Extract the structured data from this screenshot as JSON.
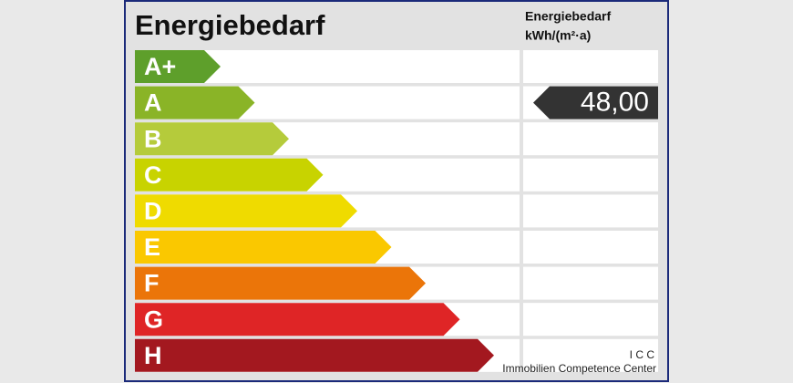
{
  "header": {
    "title": "Energiebedarf",
    "unit_lines": [
      "Energiebedarf",
      "kWh/(m²·a)"
    ]
  },
  "classes": [
    {
      "label": "A+",
      "color": "#5e9f2b",
      "value": null
    },
    {
      "label": "A",
      "color": "#8ab427",
      "value": "48,00"
    },
    {
      "label": "B",
      "color": "#b5cb3b",
      "value": null
    },
    {
      "label": "C",
      "color": "#c8d300",
      "value": null
    },
    {
      "label": "D",
      "color": "#efdb00",
      "value": null
    },
    {
      "label": "E",
      "color": "#fac800",
      "value": null
    },
    {
      "label": "F",
      "color": "#eb7509",
      "value": null
    },
    {
      "label": "G",
      "color": "#df2526",
      "value": null
    },
    {
      "label": "H",
      "color": "#a3181f",
      "value": null
    }
  ],
  "footer": {
    "lines": [
      "I C C",
      "Immobilien Competence Center"
    ]
  }
}
